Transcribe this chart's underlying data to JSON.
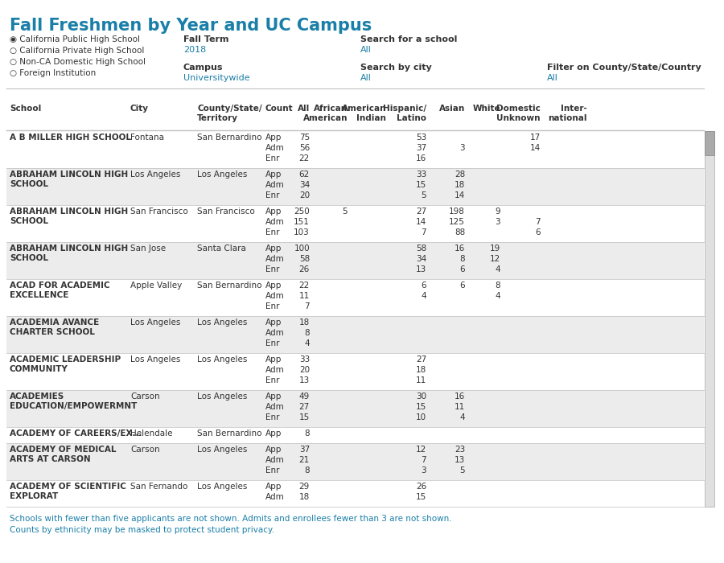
{
  "title": "Fall Freshmen by Year and UC Campus",
  "title_color": "#1a7fa8",
  "bg_white": "#ffffff",
  "bg_gray": "#ececec",
  "border_color": "#c0c0c0",
  "value_color": "#333333",
  "link_color": "#1a7fa8",
  "footnote_color": "#1a7fa8",
  "footnote1": "Schools with fewer than five applicants are not shown. Admits and enrollees fewer than 3 are not shown.",
  "footnote2": "Counts by ethnicity may be masked to protect student privacy.",
  "rows": [
    {
      "school": "A B MILLER HIGH SCHOOL",
      "city": "Fontana",
      "county": "San Bernardino",
      "subrows": [
        {
          "count": "App",
          "all": "75",
          "afam": "",
          "amin": "",
          "hisp": "53",
          "asian": "",
          "white": "",
          "domunk": "17",
          "intl": ""
        },
        {
          "count": "Adm",
          "all": "56",
          "afam": "",
          "amin": "",
          "hisp": "37",
          "asian": "3",
          "white": "",
          "domunk": "14",
          "intl": ""
        },
        {
          "count": "Enr",
          "all": "22",
          "afam": "",
          "amin": "",
          "hisp": "16",
          "asian": "",
          "white": "",
          "domunk": "",
          "intl": ""
        }
      ]
    },
    {
      "school": "ABRAHAM LINCOLN HIGH\nSCHOOL",
      "city": "Los Angeles",
      "county": "Los Angeles",
      "subrows": [
        {
          "count": "App",
          "all": "62",
          "afam": "",
          "amin": "",
          "hisp": "33",
          "asian": "28",
          "white": "",
          "domunk": "",
          "intl": ""
        },
        {
          "count": "Adm",
          "all": "34",
          "afam": "",
          "amin": "",
          "hisp": "15",
          "asian": "18",
          "white": "",
          "domunk": "",
          "intl": ""
        },
        {
          "count": "Enr",
          "all": "20",
          "afam": "",
          "amin": "",
          "hisp": "5",
          "asian": "14",
          "white": "",
          "domunk": "",
          "intl": ""
        }
      ]
    },
    {
      "school": "ABRAHAM LINCOLN HIGH\nSCHOOL",
      "city": "San Francisco",
      "county": "San Francisco",
      "subrows": [
        {
          "count": "App",
          "all": "250",
          "afam": "5",
          "amin": "",
          "hisp": "27",
          "asian": "198",
          "white": "9",
          "domunk": "",
          "intl": ""
        },
        {
          "count": "Adm",
          "all": "151",
          "afam": "",
          "amin": "",
          "hisp": "14",
          "asian": "125",
          "white": "3",
          "domunk": "7",
          "intl": ""
        },
        {
          "count": "Enr",
          "all": "103",
          "afam": "",
          "amin": "",
          "hisp": "7",
          "asian": "88",
          "white": "",
          "domunk": "6",
          "intl": ""
        }
      ]
    },
    {
      "school": "ABRAHAM LINCOLN HIGH\nSCHOOL",
      "city": "San Jose",
      "county": "Santa Clara",
      "subrows": [
        {
          "count": "App",
          "all": "100",
          "afam": "",
          "amin": "",
          "hisp": "58",
          "asian": "16",
          "white": "19",
          "domunk": "",
          "intl": ""
        },
        {
          "count": "Adm",
          "all": "58",
          "afam": "",
          "amin": "",
          "hisp": "34",
          "asian": "8",
          "white": "12",
          "domunk": "",
          "intl": ""
        },
        {
          "count": "Enr",
          "all": "26",
          "afam": "",
          "amin": "",
          "hisp": "13",
          "asian": "6",
          "white": "4",
          "domunk": "",
          "intl": ""
        }
      ]
    },
    {
      "school": "ACAD FOR ACADEMIC\nEXCELLENCE",
      "city": "Apple Valley",
      "county": "San Bernardino",
      "subrows": [
        {
          "count": "App",
          "all": "22",
          "afam": "",
          "amin": "",
          "hisp": "6",
          "asian": "6",
          "white": "8",
          "domunk": "",
          "intl": ""
        },
        {
          "count": "Adm",
          "all": "11",
          "afam": "",
          "amin": "",
          "hisp": "4",
          "asian": "",
          "white": "4",
          "domunk": "",
          "intl": ""
        },
        {
          "count": "Enr",
          "all": "7",
          "afam": "",
          "amin": "",
          "hisp": "",
          "asian": "",
          "white": "",
          "domunk": "",
          "intl": ""
        }
      ]
    },
    {
      "school": "ACADEMIA AVANCE\nCHARTER SCHOOL",
      "city": "Los Angeles",
      "county": "Los Angeles",
      "subrows": [
        {
          "count": "App",
          "all": "18",
          "afam": "",
          "amin": "",
          "hisp": "",
          "asian": "",
          "white": "",
          "domunk": "",
          "intl": ""
        },
        {
          "count": "Adm",
          "all": "8",
          "afam": "",
          "amin": "",
          "hisp": "",
          "asian": "",
          "white": "",
          "domunk": "",
          "intl": ""
        },
        {
          "count": "Enr",
          "all": "4",
          "afam": "",
          "amin": "",
          "hisp": "",
          "asian": "",
          "white": "",
          "domunk": "",
          "intl": ""
        }
      ]
    },
    {
      "school": "ACADEMIC LEADERSHIP\nCOMMUNITY",
      "city": "Los Angeles",
      "county": "Los Angeles",
      "subrows": [
        {
          "count": "App",
          "all": "33",
          "afam": "",
          "amin": "",
          "hisp": "27",
          "asian": "",
          "white": "",
          "domunk": "",
          "intl": ""
        },
        {
          "count": "Adm",
          "all": "20",
          "afam": "",
          "amin": "",
          "hisp": "18",
          "asian": "",
          "white": "",
          "domunk": "",
          "intl": ""
        },
        {
          "count": "Enr",
          "all": "13",
          "afam": "",
          "amin": "",
          "hisp": "11",
          "asian": "",
          "white": "",
          "domunk": "",
          "intl": ""
        }
      ]
    },
    {
      "school": "ACADEMIES\nEDUCATION/EMPOWERMNT",
      "city": "Carson",
      "county": "Los Angeles",
      "subrows": [
        {
          "count": "App",
          "all": "49",
          "afam": "",
          "amin": "",
          "hisp": "30",
          "asian": "16",
          "white": "",
          "domunk": "",
          "intl": ""
        },
        {
          "count": "Adm",
          "all": "27",
          "afam": "",
          "amin": "",
          "hisp": "15",
          "asian": "11",
          "white": "",
          "domunk": "",
          "intl": ""
        },
        {
          "count": "Enr",
          "all": "15",
          "afam": "",
          "amin": "",
          "hisp": "10",
          "asian": "4",
          "white": "",
          "domunk": "",
          "intl": ""
        }
      ]
    },
    {
      "school": "ACADEMY OF CAREERS/EX...",
      "city": "Helendale",
      "county": "San Bernardino",
      "subrows": [
        {
          "count": "App",
          "all": "8",
          "afam": "",
          "amin": "",
          "hisp": "",
          "asian": "",
          "white": "",
          "domunk": "",
          "intl": ""
        }
      ]
    },
    {
      "school": "ACADEMY OF MEDICAL\nARTS AT CARSON",
      "city": "Carson",
      "county": "Los Angeles",
      "subrows": [
        {
          "count": "App",
          "all": "37",
          "afam": "",
          "amin": "",
          "hisp": "12",
          "asian": "23",
          "white": "",
          "domunk": "",
          "intl": ""
        },
        {
          "count": "Adm",
          "all": "21",
          "afam": "",
          "amin": "",
          "hisp": "7",
          "asian": "13",
          "white": "",
          "domunk": "",
          "intl": ""
        },
        {
          "count": "Enr",
          "all": "8",
          "afam": "",
          "amin": "",
          "hisp": "3",
          "asian": "5",
          "white": "",
          "domunk": "",
          "intl": ""
        }
      ]
    },
    {
      "school": "ACADEMY OF SCIENTIFIC\nEXPLORAT",
      "city": "San Fernando",
      "county": "Los Angeles",
      "subrows": [
        {
          "count": "App",
          "all": "29",
          "afam": "",
          "amin": "",
          "hisp": "26",
          "asian": "",
          "white": "",
          "domunk": "",
          "intl": ""
        },
        {
          "count": "Adm",
          "all": "18",
          "afam": "",
          "amin": "",
          "hisp": "15",
          "asian": "",
          "white": "",
          "domunk": "",
          "intl": ""
        }
      ]
    }
  ]
}
